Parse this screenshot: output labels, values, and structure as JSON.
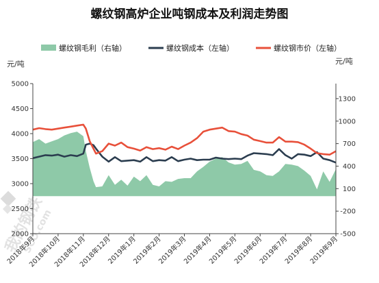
{
  "chart_data": {
    "type": "line",
    "title": "螺纹钢高炉企业吨钢成本及利润走势图",
    "left_unit": "元/吨",
    "right_unit": "元/吨",
    "legend_position": "top",
    "left_axis": {
      "ylim": [
        2000,
        5000
      ],
      "ticks": [
        "2000",
        "2500",
        "3000",
        "3500",
        "4000",
        "4500",
        "5000"
      ]
    },
    "right_axis": {
      "ylim": [
        -500,
        1500
      ],
      "ticks": [
        "-500",
        "-200",
        "100",
        "400",
        "700",
        "1000",
        "1300"
      ]
    },
    "x_ticks": [
      "2018年9月",
      "2018年10月",
      "2018年11月",
      "2018年12月",
      "2019年1月",
      "2019年2月",
      "2019年3月",
      "2019年4月",
      "2019年5月",
      "2019年6月",
      "2019年7月",
      "2019年8月",
      "2019年9月"
    ],
    "x_positions": [
      0,
      1,
      2,
      3,
      4,
      5,
      6,
      7,
      8,
      9,
      10,
      11,
      12
    ],
    "x": [
      0,
      0.25,
      0.5,
      0.75,
      1,
      1.25,
      1.5,
      1.75,
      2,
      2.1,
      2.25,
      2.4,
      2.5,
      2.75,
      3,
      3.25,
      3.5,
      3.75,
      4,
      4.25,
      4.5,
      4.75,
      5,
      5.25,
      5.5,
      5.75,
      6,
      6.25,
      6.5,
      6.75,
      7,
      7.25,
      7.5,
      7.75,
      8,
      8.25,
      8.5,
      8.75,
      9,
      9.25,
      9.5,
      9.75,
      10,
      10.25,
      10.5,
      10.75,
      11,
      11.25,
      11.5,
      11.75,
      12
    ],
    "series": [
      {
        "name": "螺纹钢毛利（右轴）",
        "axis": "right",
        "kind": "area",
        "color": "#8ec9a8",
        "values": [
          720,
          760,
          700,
          730,
          760,
          810,
          840,
          860,
          800,
          600,
          380,
          200,
          120,
          130,
          280,
          150,
          220,
          140,
          260,
          200,
          280,
          150,
          130,
          200,
          190,
          230,
          240,
          240,
          330,
          390,
          460,
          500,
          520,
          450,
          420,
          430,
          470,
          350,
          330,
          280,
          270,
          330,
          430,
          420,
          400,
          340,
          270,
          90,
          330,
          190,
          360
        ]
      },
      {
        "name": "螺纹钢成本（左轴）",
        "axis": "left",
        "kind": "line",
        "color": "#2b3d4f",
        "values": [
          3510,
          3540,
          3570,
          3560,
          3580,
          3540,
          3570,
          3550,
          3600,
          3780,
          3800,
          3770,
          3700,
          3540,
          3440,
          3530,
          3450,
          3460,
          3470,
          3440,
          3530,
          3450,
          3470,
          3460,
          3530,
          3450,
          3480,
          3500,
          3470,
          3480,
          3480,
          3520,
          3500,
          3490,
          3500,
          3490,
          3560,
          3610,
          3600,
          3590,
          3570,
          3690,
          3570,
          3500,
          3590,
          3580,
          3550,
          3630,
          3500,
          3470,
          3420
        ]
      },
      {
        "name": "螺纹钢市价（左轴）",
        "axis": "left",
        "kind": "line",
        "color": "#e8503a",
        "values": [
          4080,
          4110,
          4090,
          4080,
          4100,
          4120,
          4140,
          4160,
          4180,
          4100,
          3850,
          3700,
          3600,
          3650,
          3800,
          3760,
          3820,
          3730,
          3700,
          3660,
          3730,
          3690,
          3710,
          3680,
          3740,
          3690,
          3760,
          3820,
          3910,
          4040,
          4080,
          4100,
          4120,
          4050,
          4040,
          3990,
          3960,
          3880,
          3850,
          3820,
          3820,
          3930,
          3840,
          3840,
          3830,
          3780,
          3700,
          3610,
          3590,
          3580,
          3650
        ]
      }
    ]
  },
  "watermark": {
    "lines": [
      "我的钢铁",
      "SCO.com"
    ],
    "color": "#e6e6e6"
  }
}
